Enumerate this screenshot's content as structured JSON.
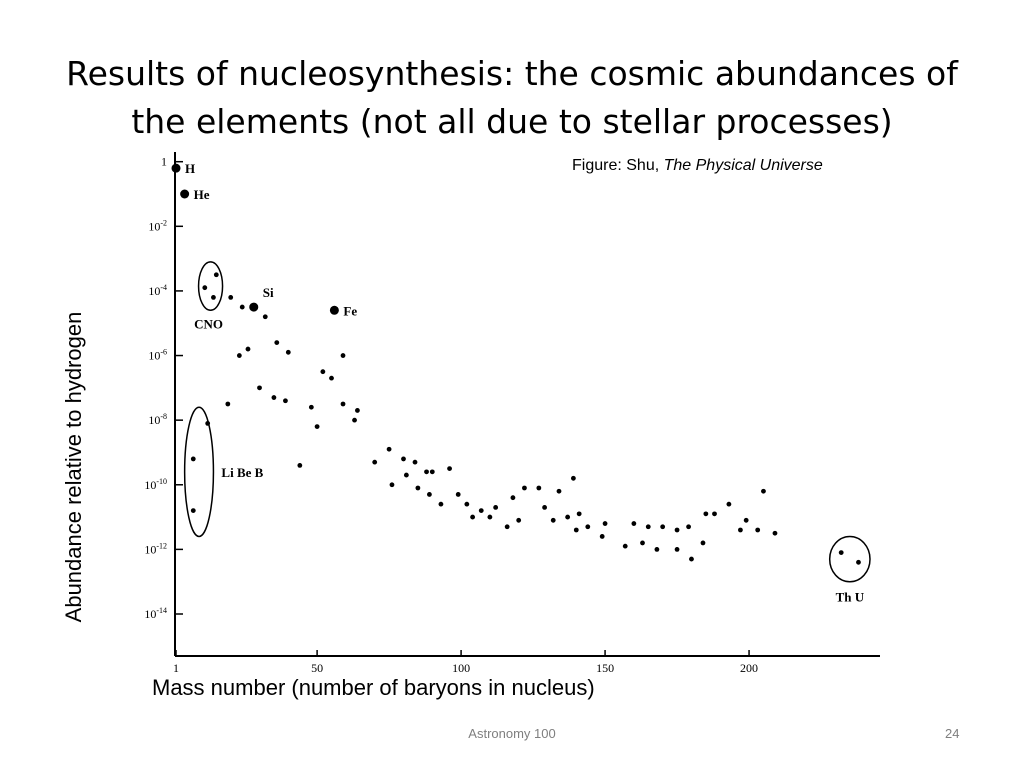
{
  "slide": {
    "title_line1": "Results of nucleosynthesis: the cosmic abundances of",
    "title_line2": "the elements (not all due to stellar processes)",
    "credit_prefix": "Figure: Shu, ",
    "credit_italic": "The Physical Universe",
    "footer": "Astronomy 100",
    "slide_number": "24"
  },
  "chart_data": {
    "type": "scatter",
    "title": "",
    "xlabel": "Mass number (number of baryons in nucleus)",
    "ylabel": "Abundance relative to hydrogen",
    "xlim": [
      1,
      242
    ],
    "ylim": [
      -15.3,
      0.3
    ],
    "y_scale": "log10",
    "grid": false,
    "x_ticks": [
      {
        "value": 1,
        "label": "1"
      },
      {
        "value": 50,
        "label": "50"
      },
      {
        "value": 100,
        "label": "100"
      },
      {
        "value": 150,
        "label": "150"
      },
      {
        "value": 200,
        "label": "200"
      }
    ],
    "y_ticks": [
      {
        "value": 0,
        "base": "1",
        "exp": ""
      },
      {
        "value": -2,
        "base": "10",
        "exp": "-2"
      },
      {
        "value": -4,
        "base": "10",
        "exp": "-4"
      },
      {
        "value": -6,
        "base": "10",
        "exp": "-6"
      },
      {
        "value": -8,
        "base": "10",
        "exp": "-8"
      },
      {
        "value": -10,
        "base": "10",
        "exp": "-10"
      },
      {
        "value": -12,
        "base": "10",
        "exp": "-12"
      },
      {
        "value": -14,
        "base": "10",
        "exp": "-14"
      }
    ],
    "labeled_points": [
      {
        "label": "H",
        "x": 1,
        "y": -0.2
      },
      {
        "label": "He",
        "x": 4,
        "y": -1.0
      },
      {
        "label": "Si",
        "x": 28,
        "y": -4.5
      },
      {
        "label": "Fe",
        "x": 56,
        "y": -4.6
      }
    ],
    "points": [
      {
        "x": 7,
        "y": -9.2
      },
      {
        "x": 7,
        "y": -10.8
      },
      {
        "x": 12,
        "y": -8.1
      },
      {
        "x": 11,
        "y": -3.9
      },
      {
        "x": 15,
        "y": -3.5
      },
      {
        "x": 14,
        "y": -4.2
      },
      {
        "x": 20,
        "y": -4.2
      },
      {
        "x": 19,
        "y": -7.5
      },
      {
        "x": 23,
        "y": -6.0
      },
      {
        "x": 24,
        "y": -4.5
      },
      {
        "x": 26,
        "y": -5.8
      },
      {
        "x": 30,
        "y": -7.0
      },
      {
        "x": 32,
        "y": -4.8
      },
      {
        "x": 35,
        "y": -7.3
      },
      {
        "x": 36,
        "y": -5.6
      },
      {
        "x": 39,
        "y": -7.4
      },
      {
        "x": 40,
        "y": -5.9
      },
      {
        "x": 44,
        "y": -9.4
      },
      {
        "x": 48,
        "y": -7.6
      },
      {
        "x": 50,
        "y": -8.2
      },
      {
        "x": 52,
        "y": -6.5
      },
      {
        "x": 55,
        "y": -6.7
      },
      {
        "x": 59,
        "y": -7.5
      },
      {
        "x": 59,
        "y": -6.0
      },
      {
        "x": 63,
        "y": -8.0
      },
      {
        "x": 64,
        "y": -7.7
      },
      {
        "x": 70,
        "y": -9.3
      },
      {
        "x": 75,
        "y": -8.9
      },
      {
        "x": 76,
        "y": -10.0
      },
      {
        "x": 80,
        "y": -9.2
      },
      {
        "x": 81,
        "y": -9.7
      },
      {
        "x": 84,
        "y": -9.3
      },
      {
        "x": 85,
        "y": -10.1
      },
      {
        "x": 88,
        "y": -9.6
      },
      {
        "x": 89,
        "y": -10.3
      },
      {
        "x": 90,
        "y": -9.6
      },
      {
        "x": 93,
        "y": -10.6
      },
      {
        "x": 96,
        "y": -9.5
      },
      {
        "x": 99,
        "y": -10.3
      },
      {
        "x": 102,
        "y": -10.6
      },
      {
        "x": 104,
        "y": -11.0
      },
      {
        "x": 107,
        "y": -10.8
      },
      {
        "x": 110,
        "y": -11.0
      },
      {
        "x": 112,
        "y": -10.7
      },
      {
        "x": 116,
        "y": -11.3
      },
      {
        "x": 118,
        "y": -10.4
      },
      {
        "x": 120,
        "y": -11.1
      },
      {
        "x": 122,
        "y": -10.1
      },
      {
        "x": 127,
        "y": -10.1
      },
      {
        "x": 129,
        "y": -10.7
      },
      {
        "x": 132,
        "y": -11.1
      },
      {
        "x": 134,
        "y": -10.2
      },
      {
        "x": 137,
        "y": -11.0
      },
      {
        "x": 139,
        "y": -9.8
      },
      {
        "x": 140,
        "y": -11.4
      },
      {
        "x": 141,
        "y": -10.9
      },
      {
        "x": 144,
        "y": -11.3
      },
      {
        "x": 149,
        "y": -11.6
      },
      {
        "x": 150,
        "y": -11.2
      },
      {
        "x": 157,
        "y": -11.9
      },
      {
        "x": 160,
        "y": -11.2
      },
      {
        "x": 163,
        "y": -11.8
      },
      {
        "x": 165,
        "y": -11.3
      },
      {
        "x": 168,
        "y": -12.0
      },
      {
        "x": 170,
        "y": -11.3
      },
      {
        "x": 175,
        "y": -11.4
      },
      {
        "x": 175,
        "y": -12.0
      },
      {
        "x": 179,
        "y": -11.3
      },
      {
        "x": 180,
        "y": -12.3
      },
      {
        "x": 184,
        "y": -11.8
      },
      {
        "x": 185,
        "y": -10.9
      },
      {
        "x": 188,
        "y": -10.9
      },
      {
        "x": 193,
        "y": -10.6
      },
      {
        "x": 197,
        "y": -11.4
      },
      {
        "x": 199,
        "y": -11.1
      },
      {
        "x": 203,
        "y": -11.4
      },
      {
        "x": 205,
        "y": -10.2
      },
      {
        "x": 209,
        "y": -11.5
      },
      {
        "x": 232,
        "y": -12.1
      },
      {
        "x": 238,
        "y": -12.4
      }
    ],
    "annotations": [
      {
        "text": "CNO",
        "group_x": [
          11,
          15
        ],
        "group_y": [
          -4.6,
          -3.1
        ]
      },
      {
        "text": "Li Be B",
        "group_x": [
          4,
          14
        ],
        "group_y": [
          -11.6,
          -7.6
        ]
      },
      {
        "text": "Th U",
        "group_x": [
          228,
          242
        ],
        "group_y": [
          -13.0,
          -11.6
        ]
      }
    ]
  }
}
